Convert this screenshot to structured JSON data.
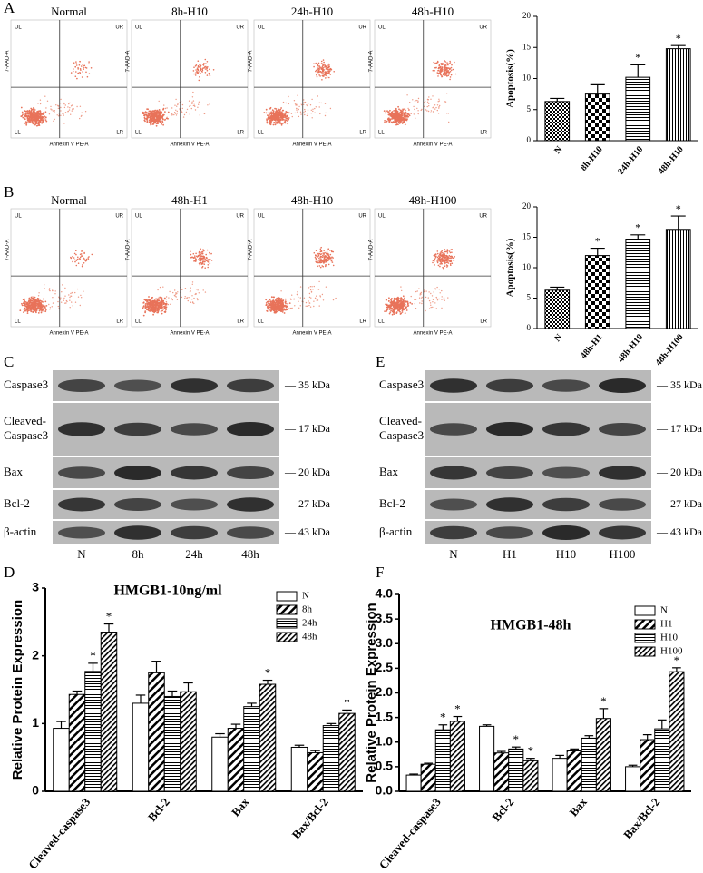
{
  "panels": [
    "A",
    "B",
    "C",
    "D",
    "E",
    "F"
  ],
  "flow_axes": {
    "x_label": "Annexin V PE-A",
    "y_label": "7-AAD-A",
    "quadrants": [
      "UL",
      "UR",
      "LL",
      "LR"
    ]
  },
  "flow_A": {
    "titles": [
      "Normal",
      "8h-H10",
      "24h-H10",
      "48h-H10"
    ]
  },
  "flow_B": {
    "titles": [
      "Normal",
      "48h-H1",
      "48h-H10",
      "48h-H100"
    ]
  },
  "blot_C": {
    "proteins": [
      [
        "Caspase3"
      ],
      [
        "Cleaved-",
        "Caspase3"
      ],
      [
        "Bax"
      ],
      [
        "Bcl-2"
      ],
      [
        "β-actin"
      ]
    ],
    "sizes": [
      "— 35 kDa",
      "— 17 kDa",
      "— 20 kDa",
      "— 27 kDa",
      "— 43 kDa"
    ],
    "lanes": [
      "N",
      "8h",
      "24h",
      "48h"
    ]
  },
  "blot_E": {
    "proteins": [
      [
        "Caspase3"
      ],
      [
        "Cleaved-",
        "Caspase3"
      ],
      [
        "Bax"
      ],
      [
        "Bcl-2"
      ],
      [
        "β-actin"
      ]
    ],
    "sizes": [
      "— 35 kDa",
      "— 17 kDa",
      "— 20 kDa",
      "— 27 kDa",
      "— 43 kDa"
    ],
    "lanes": [
      "N",
      "H1",
      "H10",
      "H100"
    ]
  },
  "chart_data": [
    {
      "type": "bar",
      "y_label": "Apoptosis(%)",
      "categories": [
        "N",
        "8h-H10",
        "24h-H10",
        "48h-H10"
      ],
      "values": [
        6.3,
        7.5,
        10.2,
        14.8
      ],
      "errors": [
        0.5,
        1.5,
        2.0,
        0.5
      ],
      "patterns": [
        "checker",
        "checker-large",
        "horizontal",
        "vertical"
      ],
      "significant": [
        false,
        false,
        true,
        true
      ],
      "significance_marker": "*",
      "ylim": [
        0,
        20
      ],
      "yticks": [
        0,
        5,
        10,
        15,
        20
      ]
    },
    {
      "type": "bar",
      "y_label": "Apoptosis(%)",
      "categories": [
        "N",
        "48h-H1",
        "48h-H10",
        "48h-H100"
      ],
      "values": [
        6.3,
        12.0,
        14.7,
        16.3
      ],
      "errors": [
        0.5,
        1.2,
        0.7,
        2.2
      ],
      "patterns": [
        "checker",
        "checker-large",
        "horizontal",
        "vertical"
      ],
      "significant": [
        false,
        true,
        true,
        true
      ],
      "significance_marker": "*",
      "ylim": [
        0,
        20
      ],
      "yticks": [
        0,
        5,
        10,
        15,
        20
      ]
    },
    {
      "type": "grouped-bar",
      "title": "HMGB1-10ng/ml",
      "y_label": "Relative Protein Expression",
      "categories": [
        "Cleaved-caspase3",
        "Bcl-2",
        "Bax",
        "Bax/Bcl-2"
      ],
      "series": [
        {
          "name": "N",
          "pattern": "blank",
          "values": [
            0.93,
            1.3,
            0.8,
            0.65
          ],
          "errors": [
            0.1,
            0.12,
            0.05,
            0.03
          ],
          "significant": [
            false,
            false,
            false,
            false
          ]
        },
        {
          "name": "8h",
          "pattern": "diagonal",
          "values": [
            1.43,
            1.75,
            0.93,
            0.57
          ],
          "errors": [
            0.05,
            0.17,
            0.06,
            0.03
          ],
          "significant": [
            false,
            false,
            false,
            false
          ]
        },
        {
          "name": "24h",
          "pattern": "horizontal",
          "values": [
            1.77,
            1.4,
            1.25,
            0.97
          ],
          "errors": [
            0.12,
            0.08,
            0.05,
            0.03
          ],
          "significant": [
            true,
            false,
            false,
            false
          ]
        },
        {
          "name": "48h",
          "pattern": "diagonal-dense",
          "values": [
            2.35,
            1.47,
            1.58,
            1.15
          ],
          "errors": [
            0.12,
            0.13,
            0.06,
            0.05
          ],
          "significant": [
            true,
            false,
            true,
            true
          ]
        }
      ],
      "significance_marker": "*",
      "ylim": [
        0,
        3
      ],
      "yticks": [
        0,
        1,
        2,
        3
      ]
    },
    {
      "type": "grouped-bar",
      "title": "HMGB1-48h",
      "y_label": "Relative Protein Expression",
      "categories": [
        "Cleaved-caspase3",
        "Bcl-2",
        "Bax",
        "Bax/Bcl-2"
      ],
      "series": [
        {
          "name": "N",
          "pattern": "blank",
          "values": [
            0.33,
            1.32,
            0.67,
            0.5
          ],
          "errors": [
            0.02,
            0.03,
            0.06,
            0.03
          ],
          "significant": [
            false,
            false,
            false,
            false
          ]
        },
        {
          "name": "H1",
          "pattern": "diagonal",
          "values": [
            0.55,
            0.78,
            0.82,
            1.05
          ],
          "errors": [
            0.02,
            0.03,
            0.04,
            0.1
          ],
          "significant": [
            false,
            false,
            false,
            false
          ]
        },
        {
          "name": "H10",
          "pattern": "horizontal",
          "values": [
            1.25,
            0.86,
            1.08,
            1.27
          ],
          "errors": [
            0.1,
            0.04,
            0.05,
            0.18
          ],
          "significant": [
            true,
            true,
            false,
            false
          ]
        },
        {
          "name": "H100",
          "pattern": "diagonal-dense",
          "values": [
            1.42,
            0.62,
            1.48,
            2.43
          ],
          "errors": [
            0.1,
            0.05,
            0.2,
            0.08
          ],
          "significant": [
            true,
            true,
            true,
            true
          ]
        }
      ],
      "significance_marker": "*",
      "ylim": [
        0,
        4
      ],
      "yticks": [
        {
          "value": 0,
          "label": "0.0"
        },
        0.5,
        {
          "value": 1,
          "label": "1.0"
        },
        1.5,
        {
          "value": 2,
          "label": "2.0"
        },
        2.5,
        {
          "value": 3,
          "label": "3.0"
        },
        3.5,
        {
          "value": 4,
          "label": "4.0"
        }
      ]
    }
  ]
}
